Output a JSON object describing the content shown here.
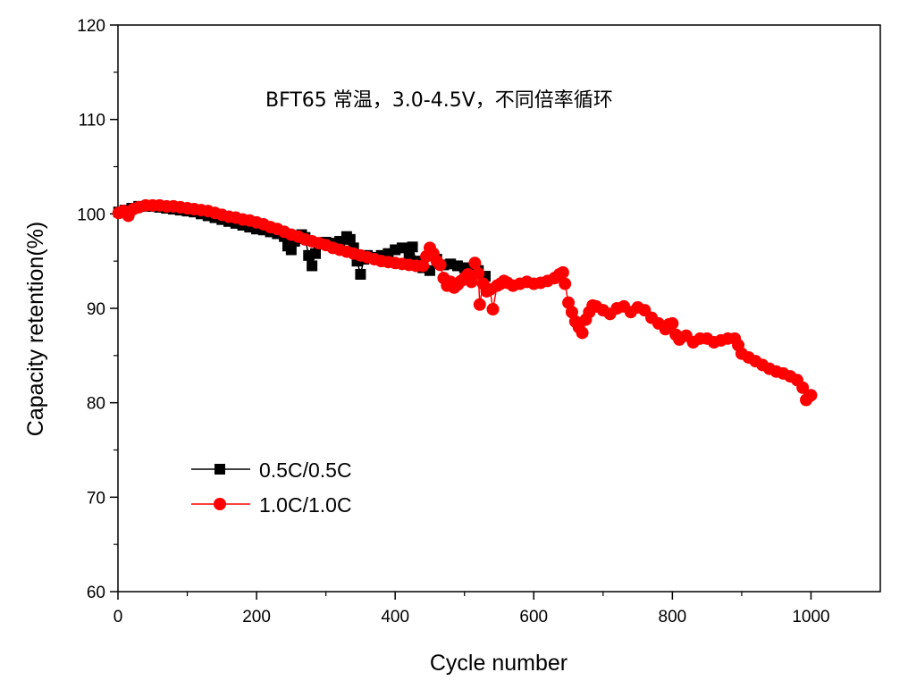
{
  "chart_data": {
    "type": "scatter",
    "title": "",
    "annotation": "BFT65 常温，3.0-4.5V，不同倍率循环",
    "xlabel": "Cycle number",
    "ylabel": "Capacity retention(%)",
    "xlim": [
      0,
      1100
    ],
    "ylim": [
      60,
      120
    ],
    "x_ticks": [
      "0",
      "200",
      "400",
      "600",
      "800",
      "1000"
    ],
    "y_ticks": [
      "60",
      "70",
      "80",
      "90",
      "100",
      "110",
      "120"
    ],
    "legend_position": "lower-left",
    "series": [
      {
        "name": "0.5C/0.5C",
        "color": "#000000",
        "marker": "square",
        "points": [
          [
            1,
            100.2
          ],
          [
            10,
            100.4
          ],
          [
            20,
            100.6
          ],
          [
            30,
            100.8
          ],
          [
            40,
            100.8
          ],
          [
            50,
            100.8
          ],
          [
            60,
            100.7
          ],
          [
            70,
            100.6
          ],
          [
            80,
            100.5
          ],
          [
            90,
            100.4
          ],
          [
            100,
            100.3
          ],
          [
            110,
            100.2
          ],
          [
            120,
            100.0
          ],
          [
            130,
            99.8
          ],
          [
            140,
            99.6
          ],
          [
            150,
            99.4
          ],
          [
            160,
            99.2
          ],
          [
            170,
            99.0
          ],
          [
            180,
            98.8
          ],
          [
            190,
            98.6
          ],
          [
            200,
            98.4
          ],
          [
            210,
            98.3
          ],
          [
            220,
            98.1
          ],
          [
            230,
            97.9
          ],
          [
            240,
            97.6
          ],
          [
            245,
            96.6
          ],
          [
            250,
            96.2
          ],
          [
            255,
            97.1
          ],
          [
            260,
            97.4
          ],
          [
            265,
            97.8
          ],
          [
            270,
            97.5
          ],
          [
            275,
            95.6
          ],
          [
            280,
            94.5
          ],
          [
            285,
            95.8
          ],
          [
            290,
            96.8
          ],
          [
            300,
            97.0
          ],
          [
            310,
            96.9
          ],
          [
            320,
            97.1
          ],
          [
            330,
            97.6
          ],
          [
            335,
            97.3
          ],
          [
            340,
            96.4
          ],
          [
            345,
            95.0
          ],
          [
            350,
            93.6
          ],
          [
            355,
            95.2
          ],
          [
            360,
            95.6
          ],
          [
            370,
            95.4
          ],
          [
            380,
            95.6
          ],
          [
            390,
            95.8
          ],
          [
            400,
            96.2
          ],
          [
            410,
            96.4
          ],
          [
            420,
            95.6
          ],
          [
            425,
            96.5
          ],
          [
            430,
            95.0
          ],
          [
            440,
            94.3
          ],
          [
            450,
            94.0
          ],
          [
            460,
            95.2
          ],
          [
            470,
            94.6
          ],
          [
            480,
            94.7
          ],
          [
            490,
            94.5
          ],
          [
            500,
            94.3
          ],
          [
            510,
            94.1
          ],
          [
            520,
            94.0
          ],
          [
            530,
            93.4
          ]
        ]
      },
      {
        "name": "1.0C/1.0C",
        "color": "#ff0000",
        "marker": "circle",
        "points": [
          [
            1,
            100.1
          ],
          [
            8,
            100.3
          ],
          [
            15,
            99.8
          ],
          [
            22,
            100.5
          ],
          [
            30,
            100.7
          ],
          [
            40,
            100.9
          ],
          [
            50,
            100.9
          ],
          [
            60,
            100.9
          ],
          [
            70,
            100.8
          ],
          [
            80,
            100.8
          ],
          [
            90,
            100.7
          ],
          [
            100,
            100.6
          ],
          [
            110,
            100.5
          ],
          [
            120,
            100.4
          ],
          [
            130,
            100.3
          ],
          [
            140,
            100.1
          ],
          [
            150,
            99.9
          ],
          [
            160,
            99.7
          ],
          [
            170,
            99.6
          ],
          [
            180,
            99.4
          ],
          [
            190,
            99.3
          ],
          [
            200,
            99.1
          ],
          [
            210,
            98.9
          ],
          [
            220,
            98.6
          ],
          [
            230,
            98.4
          ],
          [
            240,
            98.1
          ],
          [
            250,
            97.8
          ],
          [
            260,
            97.6
          ],
          [
            270,
            97.3
          ],
          [
            280,
            97.1
          ],
          [
            290,
            96.9
          ],
          [
            300,
            96.7
          ],
          [
            310,
            96.4
          ],
          [
            320,
            96.2
          ],
          [
            330,
            96.0
          ],
          [
            340,
            95.8
          ],
          [
            350,
            95.6
          ],
          [
            360,
            95.4
          ],
          [
            370,
            95.2
          ],
          [
            380,
            95.0
          ],
          [
            390,
            94.9
          ],
          [
            400,
            94.8
          ],
          [
            410,
            94.7
          ],
          [
            420,
            94.6
          ],
          [
            430,
            94.5
          ],
          [
            440,
            94.5
          ],
          [
            445,
            95.5
          ],
          [
            450,
            96.4
          ],
          [
            455,
            95.8
          ],
          [
            460,
            95.0
          ],
          [
            465,
            94.6
          ],
          [
            470,
            93.2
          ],
          [
            475,
            92.4
          ],
          [
            480,
            92.8
          ],
          [
            485,
            92.2
          ],
          [
            490,
            92.5
          ],
          [
            495,
            92.9
          ],
          [
            500,
            93.2
          ],
          [
            505,
            93.6
          ],
          [
            510,
            92.8
          ],
          [
            515,
            94.8
          ],
          [
            520,
            93.7
          ],
          [
            522,
            90.4
          ],
          [
            527,
            92.6
          ],
          [
            532,
            91.8
          ],
          [
            537,
            92.0
          ],
          [
            541,
            89.9
          ],
          [
            547,
            92.4
          ],
          [
            552,
            92.6
          ],
          [
            557,
            92.9
          ],
          [
            562,
            92.7
          ],
          [
            570,
            92.4
          ],
          [
            580,
            92.6
          ],
          [
            590,
            92.8
          ],
          [
            600,
            92.6
          ],
          [
            610,
            92.7
          ],
          [
            620,
            92.9
          ],
          [
            630,
            93.2
          ],
          [
            637,
            93.6
          ],
          [
            642,
            93.8
          ],
          [
            645,
            92.6
          ],
          [
            650,
            90.6
          ],
          [
            655,
            89.6
          ],
          [
            660,
            88.6
          ],
          [
            665,
            88.0
          ],
          [
            670,
            87.4
          ],
          [
            675,
            88.8
          ],
          [
            680,
            89.6
          ],
          [
            685,
            90.3
          ],
          [
            690,
            90.2
          ],
          [
            700,
            89.8
          ],
          [
            710,
            89.4
          ],
          [
            720,
            90.0
          ],
          [
            730,
            90.2
          ],
          [
            740,
            89.6
          ],
          [
            750,
            90.1
          ],
          [
            760,
            89.8
          ],
          [
            770,
            89.0
          ],
          [
            780,
            88.4
          ],
          [
            790,
            87.8
          ],
          [
            795,
            88.3
          ],
          [
            800,
            88.4
          ],
          [
            805,
            87.2
          ],
          [
            810,
            86.7
          ],
          [
            820,
            87.1
          ],
          [
            830,
            86.4
          ],
          [
            840,
            86.8
          ],
          [
            850,
            86.8
          ],
          [
            860,
            86.4
          ],
          [
            870,
            86.6
          ],
          [
            880,
            86.8
          ],
          [
            890,
            86.8
          ],
          [
            895,
            86.1
          ],
          [
            900,
            85.2
          ],
          [
            910,
            84.8
          ],
          [
            920,
            84.4
          ],
          [
            930,
            84.0
          ],
          [
            940,
            83.6
          ],
          [
            950,
            83.3
          ],
          [
            960,
            83.1
          ],
          [
            970,
            82.8
          ],
          [
            980,
            82.4
          ],
          [
            988,
            81.6
          ],
          [
            993,
            80.3
          ],
          [
            998,
            80.7
          ],
          [
            1000,
            80.8
          ]
        ]
      }
    ]
  }
}
